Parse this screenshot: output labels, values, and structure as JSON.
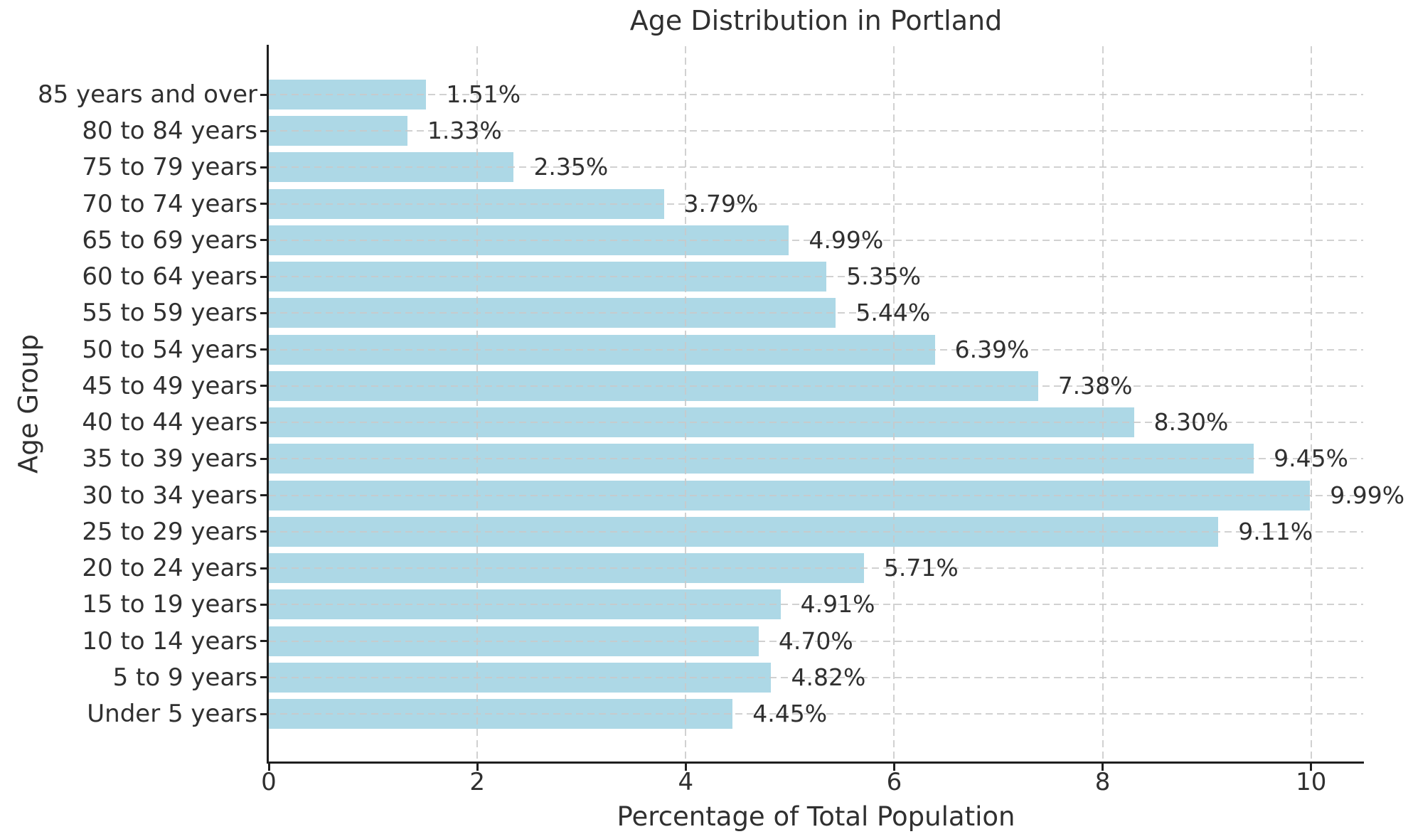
{
  "chart_data": {
    "type": "bar",
    "orientation": "horizontal",
    "title": "Age Distribution in Portland",
    "xlabel": "Percentage of Total Population",
    "ylabel": "Age Group",
    "categories": [
      "85 years and over",
      "80 to 84 years",
      "75 to 79 years",
      "70 to 74 years",
      "65 to 69 years",
      "60 to 64 years",
      "55 to 59 years",
      "50 to 54 years",
      "45 to 49 years",
      "40 to 44 years",
      "35 to 39 years",
      "30 to 34 years",
      "25 to 29 years",
      "20 to 24 years",
      "15 to 19 years",
      "10 to 14 years",
      "5 to 9 years",
      "Under 5 years"
    ],
    "values": [
      1.51,
      1.33,
      2.35,
      3.79,
      4.99,
      5.35,
      5.44,
      6.39,
      7.38,
      8.3,
      9.45,
      9.99,
      9.11,
      5.71,
      4.91,
      4.7,
      4.82,
      4.45
    ],
    "value_labels": [
      "1.51%",
      "1.33%",
      "2.35%",
      "3.79%",
      "4.99%",
      "5.35%",
      "5.44%",
      "6.39%",
      "7.38%",
      "8.30%",
      "9.45%",
      "9.99%",
      "9.11%",
      "5.71%",
      "4.91%",
      "4.70%",
      "4.82%",
      "4.45%"
    ],
    "xlim": [
      0,
      10.5
    ],
    "xticks": [
      0,
      2,
      4,
      6,
      8,
      10
    ],
    "grid": "dashed gridlines: horizontal at each category, vertical at each x tick, drawn over bars",
    "legend": "none",
    "colors": {
      "bar": "#ADD8E6",
      "grid": "#c9c9c9",
      "text": "#303030",
      "spine": "#1f1f1f",
      "background": "#ffffff"
    }
  }
}
